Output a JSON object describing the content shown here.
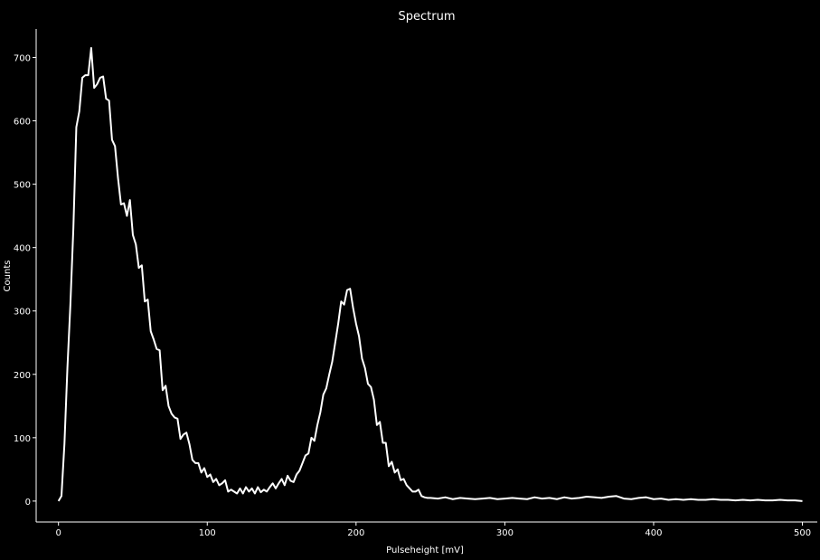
{
  "chart_data": {
    "type": "line",
    "title": "Spectrum",
    "xlabel": "Pulseheight [mV]",
    "ylabel": "Counts",
    "xlim": [
      -15,
      510
    ],
    "ylim": [
      -33,
      745
    ],
    "x_ticks": [
      0,
      100,
      200,
      300,
      400,
      500
    ],
    "y_ticks": [
      0,
      100,
      200,
      300,
      400,
      500,
      600,
      700
    ],
    "grid": false,
    "colors": {
      "background": "#000000",
      "axis": "#ffffff",
      "text": "#ffffff",
      "line": "#ffffff"
    },
    "series": [
      {
        "x": [
          0,
          2,
          4,
          6,
          8,
          10,
          12,
          14,
          16,
          18,
          20,
          22,
          24,
          26,
          28,
          30,
          32,
          34,
          36,
          38,
          40,
          42,
          44,
          46,
          48,
          50,
          52,
          54,
          56,
          58,
          60,
          62,
          64,
          66,
          68,
          70,
          72,
          74,
          76,
          78,
          80,
          82,
          84,
          86,
          88,
          90,
          92,
          94,
          96,
          98,
          100,
          102,
          104,
          106,
          108,
          110,
          112,
          114,
          116,
          118,
          120,
          122,
          124,
          126,
          128,
          130,
          132,
          134,
          136,
          138,
          140,
          142,
          144,
          146,
          148,
          150,
          152,
          154,
          156,
          158,
          160,
          162,
          164,
          166,
          168,
          170,
          172,
          174,
          176,
          178,
          180,
          182,
          184,
          186,
          188,
          190,
          192,
          194,
          196,
          198,
          200,
          202,
          204,
          206,
          208,
          210,
          212,
          214,
          216,
          218,
          220,
          222,
          224,
          226,
          228,
          230,
          232,
          234,
          236,
          238,
          240,
          242,
          244,
          246,
          248,
          250,
          255,
          260,
          265,
          270,
          275,
          280,
          285,
          290,
          295,
          300,
          305,
          310,
          315,
          320,
          325,
          330,
          335,
          340,
          345,
          350,
          355,
          360,
          365,
          370,
          375,
          380,
          385,
          390,
          395,
          400,
          405,
          410,
          415,
          420,
          425,
          430,
          435,
          440,
          445,
          450,
          455,
          460,
          465,
          470,
          475,
          480,
          485,
          490,
          495,
          500
        ],
        "y": [
          0,
          8,
          90,
          210,
          310,
          430,
          590,
          615,
          668,
          672,
          672,
          715,
          652,
          658,
          668,
          670,
          635,
          632,
          570,
          560,
          510,
          468,
          470,
          450,
          475,
          420,
          405,
          368,
          372,
          315,
          318,
          268,
          255,
          240,
          238,
          175,
          182,
          150,
          138,
          132,
          130,
          98,
          105,
          108,
          90,
          65,
          60,
          60,
          45,
          52,
          38,
          42,
          30,
          35,
          25,
          28,
          33,
          15,
          18,
          15,
          12,
          20,
          12,
          22,
          15,
          20,
          12,
          22,
          14,
          18,
          15,
          22,
          28,
          20,
          28,
          35,
          25,
          40,
          32,
          30,
          42,
          48,
          60,
          72,
          75,
          100,
          95,
          120,
          140,
          168,
          178,
          200,
          220,
          250,
          280,
          315,
          310,
          333,
          335,
          305,
          280,
          260,
          225,
          210,
          185,
          180,
          160,
          120,
          125,
          92,
          92,
          55,
          62,
          45,
          50,
          33,
          35,
          25,
          20,
          15,
          15,
          18,
          8,
          6,
          5,
          5,
          4,
          6,
          3,
          5,
          4,
          3,
          4,
          5,
          3,
          4,
          5,
          4,
          3,
          6,
          4,
          5,
          3,
          6,
          4,
          5,
          7,
          6,
          5,
          7,
          8,
          4,
          3,
          5,
          6,
          3,
          4,
          2,
          3,
          2,
          3,
          2,
          2,
          3,
          2,
          2,
          1,
          2,
          1,
          2,
          1,
          1,
          2,
          1,
          1,
          0
        ]
      }
    ]
  }
}
